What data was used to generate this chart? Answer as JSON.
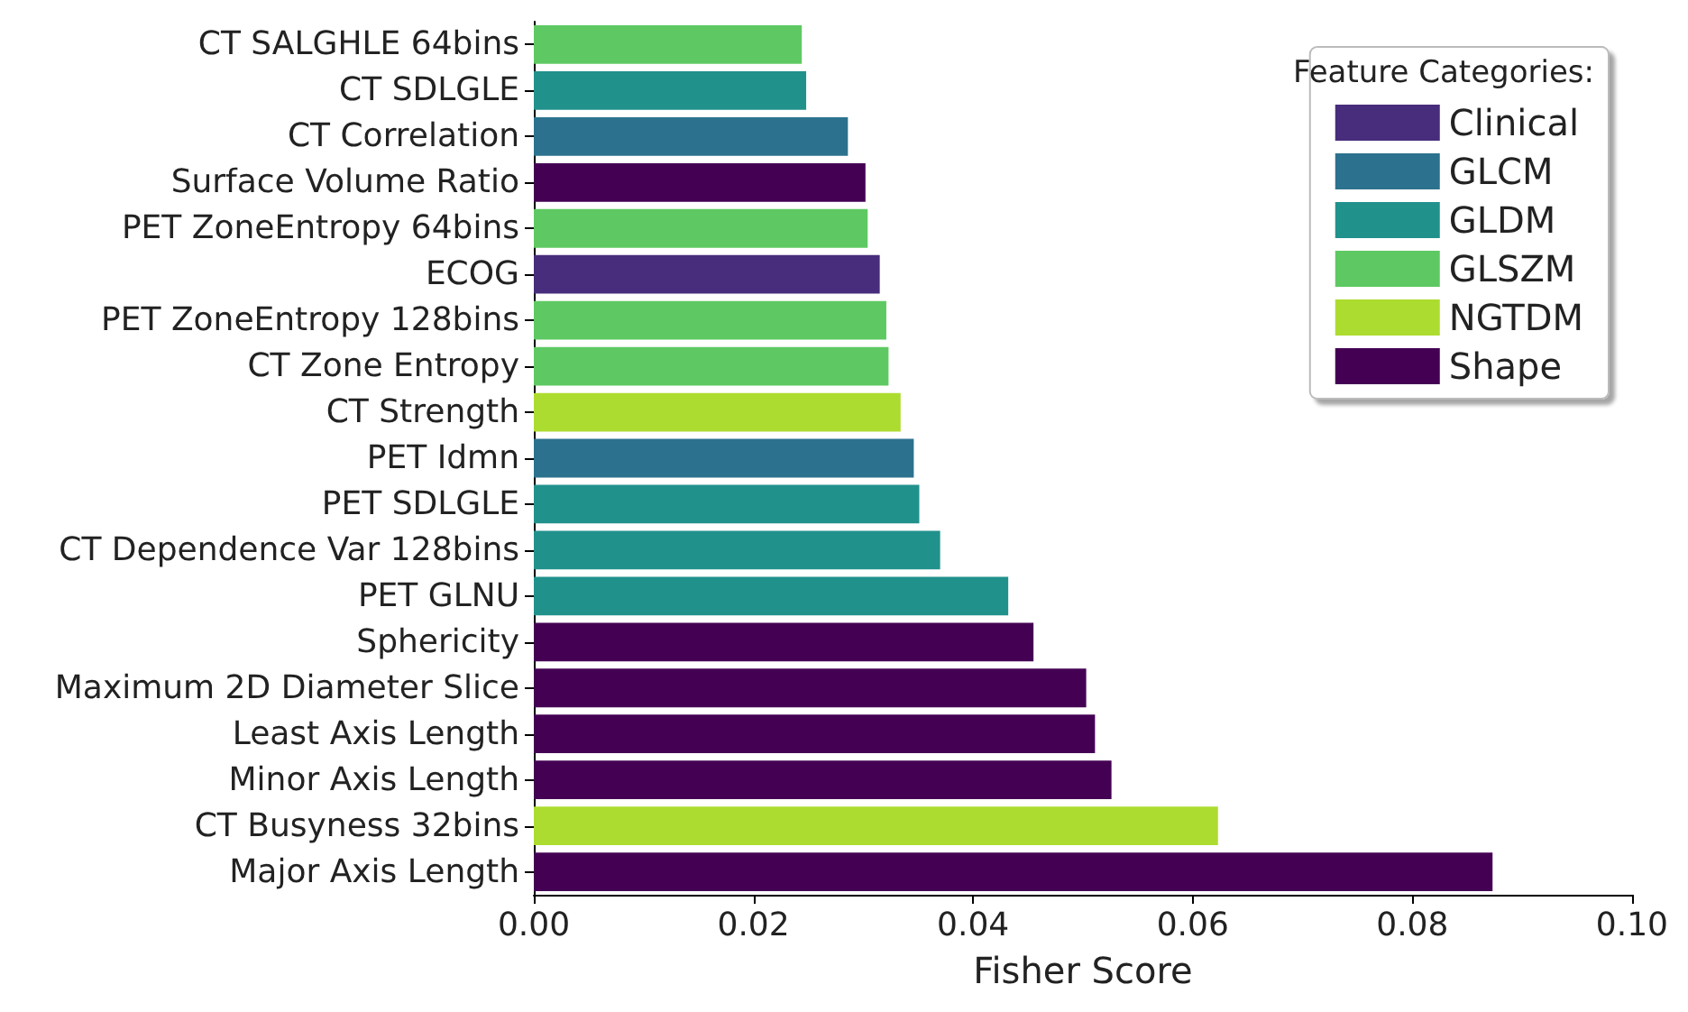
{
  "chart_data": {
    "type": "bar",
    "orientation": "horizontal",
    "xlabel": "Fisher Score",
    "legend_title": "Feature Categories:",
    "legend": "top right",
    "grid": false,
    "categories": [
      "CT SALGHLE 64bins",
      "CT SDLGLE",
      "CT Correlation",
      "Surface Volume Ratio",
      "PET ZoneEntropy 64bins",
      "ECOG",
      "PET ZoneEntropy 128bins",
      "CT Zone Entropy",
      "CT Strength",
      "PET Idmn",
      "PET SDLGLE",
      "CT Dependence Var 128bins",
      "PET GLNU",
      "Sphericity",
      "Maximum 2D Diameter Slice",
      "Least Axis Length",
      "Minor Axis Length",
      "CT Busyness 32bins",
      "Major Axis Length"
    ],
    "xlim": [
      0,
      0.1
    ],
    "xticks": [
      {
        "value": 0,
        "label": "0.00"
      },
      {
        "value": 0.02,
        "label": "0.02"
      },
      {
        "value": 0.04,
        "label": "0.04"
      },
      {
        "value": 0.06,
        "label": "0.06"
      },
      {
        "value": 0.08,
        "label": "0.08"
      },
      {
        "value": 0.1,
        "label": "0.10"
      }
    ],
    "series": [
      {
        "name": "Clinical",
        "color": "#472d7b",
        "values": [
          null,
          null,
          null,
          null,
          null,
          0.0315,
          null,
          null,
          null,
          null,
          null,
          null,
          null,
          null,
          null,
          null,
          null,
          null,
          null
        ]
      },
      {
        "name": "GLCM",
        "color": "#2c728e",
        "values": [
          null,
          null,
          0.0286,
          null,
          null,
          null,
          null,
          null,
          null,
          0.0346,
          null,
          null,
          null,
          null,
          null,
          null,
          null,
          null,
          null
        ]
      },
      {
        "name": "GLDM",
        "color": "#21918c",
        "values": [
          null,
          0.0248,
          null,
          null,
          null,
          null,
          null,
          null,
          null,
          null,
          0.0351,
          0.037,
          0.0432,
          null,
          null,
          null,
          null,
          null,
          null
        ]
      },
      {
        "name": "GLSZM",
        "color": "#5ec962",
        "values": [
          0.0244,
          null,
          null,
          null,
          0.0304,
          null,
          0.0321,
          0.0323,
          null,
          null,
          null,
          null,
          null,
          null,
          null,
          null,
          null,
          null,
          null
        ]
      },
      {
        "name": "NGTDM",
        "color": "#addc30",
        "values": [
          null,
          null,
          null,
          null,
          null,
          null,
          null,
          null,
          0.0334,
          null,
          null,
          null,
          null,
          null,
          null,
          null,
          null,
          0.0623,
          null
        ]
      },
      {
        "name": "Shape",
        "color": "#440154",
        "values": [
          null,
          null,
          null,
          0.0302,
          null,
          null,
          null,
          null,
          null,
          null,
          null,
          null,
          null,
          0.0455,
          0.0503,
          0.0511,
          0.0526,
          null,
          0.0873
        ]
      }
    ]
  }
}
